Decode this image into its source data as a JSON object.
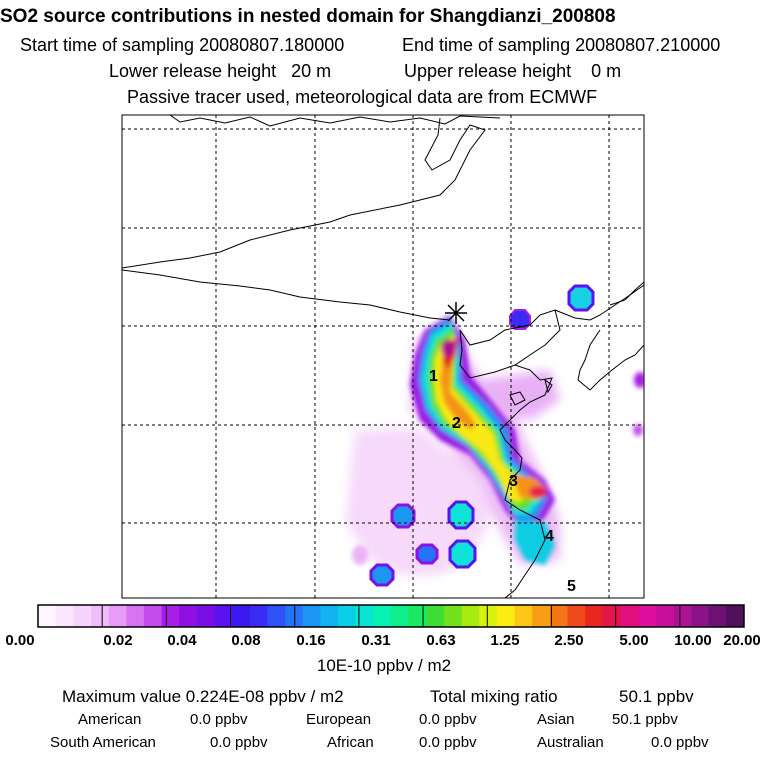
{
  "header": {
    "title": "SO2 source contributions in nested domain for Shangdianzi_200808",
    "start_label": "Start time of sampling 20080807.180000",
    "end_label": "End time of sampling 20080807.210000",
    "lower_release": "Lower release height   20 m",
    "upper_release": "Upper release height    0 m",
    "tracer_note": "Passive tracer used, meteorological data are from ECMWF"
  },
  "chart_data": {
    "type": "heatmap",
    "title": "SO2 source contributions in nested domain for Shangdianzi_200808",
    "region_labels": [
      "1",
      "2",
      "3",
      "4",
      "5"
    ],
    "colorbar": {
      "tick_labels": [
        "0.00",
        "0.02",
        "0.04",
        "0.08",
        "0.16",
        "0.31",
        "0.63",
        "1.25",
        "2.50",
        "5.00",
        "10.00",
        "20.00"
      ],
      "unit_label": "10E-10 ppbv / m2",
      "colors": [
        "#fff6ff",
        "#fbe6ff",
        "#f6d3fd",
        "#f0bdfb",
        "#e89cf7",
        "#d873f2",
        "#c64bee",
        "#a81ee8",
        "#8f10e0",
        "#7a0ee6",
        "#5a12ee",
        "#3a1af0",
        "#3a2cf3",
        "#2f52f6",
        "#2474f7",
        "#1d95f5",
        "#14b2ef",
        "#0ccde6",
        "#0ae4d2",
        "#06f3b4",
        "#10ee8c",
        "#1de863",
        "#3ddd35",
        "#72e01c",
        "#a7ea12",
        "#d8f20f",
        "#fbec12",
        "#fcc614",
        "#f89e16",
        "#f47418",
        "#ef4b1c",
        "#e9251f",
        "#e21550",
        "#e30f7d",
        "#dc0e9b",
        "#c70f9c",
        "#ad1194",
        "#8e1287",
        "#6f1173",
        "#52105b"
      ]
    },
    "stats": {
      "max_label": "Maximum value  0.224E-08 ppbv / m2",
      "total_label": "Total mixing ratio",
      "total_value": "50.1 ppbv"
    },
    "regions": [
      {
        "name": "American",
        "value": "0.0 ppbv"
      },
      {
        "name": "European",
        "value": "0.0 ppbv"
      },
      {
        "name": "Asian",
        "value": "50.1 ppbv"
      },
      {
        "name": "South American",
        "value": "0.0 ppbv"
      },
      {
        "name": "African",
        "value": "0.0 ppbv"
      },
      {
        "name": "Australian",
        "value": "0.0 ppbv"
      }
    ]
  }
}
